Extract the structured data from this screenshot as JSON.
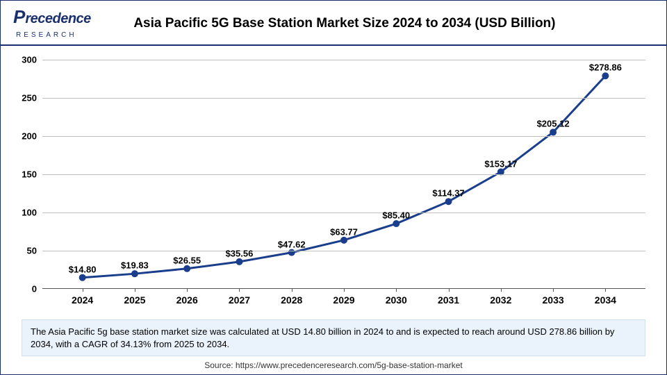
{
  "logo": {
    "text": "Precedence",
    "sub": "RESEARCH"
  },
  "title": "Asia Pacific 5G Base Station Market Size 2024 to 2034 (USD Billion)",
  "chart": {
    "type": "line",
    "categories": [
      "2024",
      "2025",
      "2026",
      "2027",
      "2028",
      "2029",
      "2030",
      "2031",
      "2032",
      "2033",
      "2034"
    ],
    "values": [
      14.8,
      19.83,
      26.55,
      35.56,
      47.62,
      63.77,
      85.4,
      114.37,
      153.17,
      205.12,
      278.86
    ],
    "value_labels": [
      "$14.80",
      "$19.83",
      "$26.55",
      "$35.56",
      "$47.62",
      "$63.77",
      "$85.40",
      "$114.37",
      "$153.17",
      "$205.12",
      "$278.86"
    ],
    "ylim": [
      0,
      300
    ],
    "ytick_step": 50,
    "yticks": [
      0,
      50,
      100,
      150,
      200,
      250,
      300
    ],
    "line_color": "#1a3e8c",
    "line_width": 3,
    "marker_fill": "#1a3e8c",
    "marker_radius": 5,
    "grid_color": "#bfbfbf",
    "background_color": "#ffffff",
    "label_fontsize": 13,
    "tick_fontsize": 14,
    "tick_fontweight": "700"
  },
  "caption": "The Asia Pacific 5g base station market size was calculated at USD 14.80 billion in 2024 to and is expected to reach around USD 278.86 billion by 2034, with a CAGR of 34.13% from 2025 to 2034.",
  "source": "Source: https://www.precedenceresearch.com/5g-base-station-market"
}
